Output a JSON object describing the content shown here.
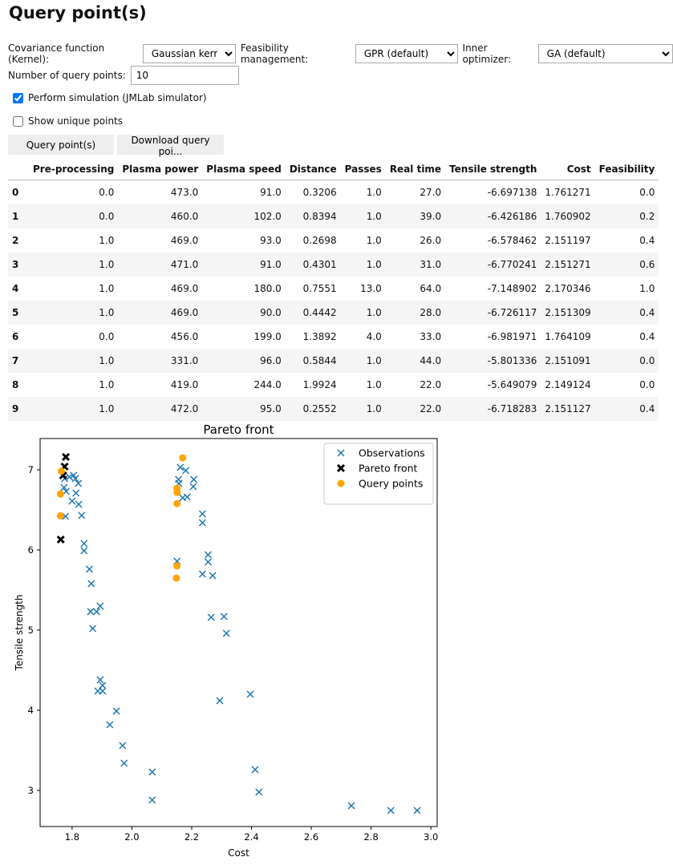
{
  "title": "Query point(s)",
  "controls": {
    "kernel_label": "Covariance function (Kernel):",
    "kernel_value": "Gaussian kernel",
    "feas_label": "Feasibility management:",
    "feas_value": "GPR (default)",
    "opt_label": "Inner optimizer:",
    "opt_value": "GA (default)",
    "nq_label": "Number of query points:",
    "nq_value": "10",
    "sim_label": "Perform simulation (JMLab simulator)",
    "sim_checked": true,
    "unique_label": "Show unique points",
    "unique_checked": false,
    "query_button": "Query point(s)",
    "download_button": "Download query poi..."
  },
  "table": {
    "headers": [
      "",
      "Pre-processing",
      "Plasma power",
      "Plasma speed",
      "Distance",
      "Passes",
      "Real time",
      "Tensile strength",
      "Cost",
      "Feasibility"
    ],
    "rows": [
      [
        "0",
        "0.0",
        "473.0",
        "91.0",
        "0.3206",
        "1.0",
        "27.0",
        "-6.697138",
        "1.761271",
        "0.0"
      ],
      [
        "1",
        "0.0",
        "460.0",
        "102.0",
        "0.8394",
        "1.0",
        "39.0",
        "-6.426186",
        "1.760902",
        "0.2"
      ],
      [
        "2",
        "1.0",
        "469.0",
        "93.0",
        "0.2698",
        "1.0",
        "26.0",
        "-6.578462",
        "2.151197",
        "0.4"
      ],
      [
        "3",
        "1.0",
        "471.0",
        "91.0",
        "0.4301",
        "1.0",
        "31.0",
        "-6.770241",
        "2.151271",
        "0.6"
      ],
      [
        "4",
        "1.0",
        "469.0",
        "180.0",
        "0.7551",
        "13.0",
        "64.0",
        "-7.148902",
        "2.170346",
        "1.0"
      ],
      [
        "5",
        "1.0",
        "469.0",
        "90.0",
        "0.4442",
        "1.0",
        "28.0",
        "-6.726117",
        "2.151309",
        "0.4"
      ],
      [
        "6",
        "0.0",
        "456.0",
        "199.0",
        "1.3892",
        "4.0",
        "33.0",
        "-6.981971",
        "1.764109",
        "0.4"
      ],
      [
        "7",
        "1.0",
        "331.0",
        "96.0",
        "0.5844",
        "1.0",
        "44.0",
        "-5.801336",
        "2.151091",
        "0.0"
      ],
      [
        "8",
        "1.0",
        "419.0",
        "244.0",
        "1.9924",
        "1.0",
        "22.0",
        "-5.649079",
        "2.149124",
        "0.0"
      ],
      [
        "9",
        "1.0",
        "472.0",
        "95.0",
        "0.2552",
        "1.0",
        "22.0",
        "-6.718283",
        "2.151127",
        "0.4"
      ]
    ]
  },
  "chart_data": {
    "type": "scatter",
    "title": "Pareto front",
    "xlabel": "Cost",
    "ylabel": "Tensile strength",
    "xlim": [
      1.693,
      3.021
    ],
    "ylim": [
      2.55,
      7.39
    ],
    "xticks": [
      "1.8",
      "2.0",
      "2.2",
      "2.4",
      "2.6",
      "2.8",
      "3.0"
    ],
    "yticks": [
      "3",
      "4",
      "5",
      "6",
      "7"
    ],
    "legend_position": "top-right",
    "grid": false,
    "series": [
      {
        "name": "Observations",
        "marker": "x",
        "color": "#1f77b4",
        "points": [
          [
            1.775,
            6.89
          ],
          [
            1.791,
            6.91
          ],
          [
            1.805,
            6.93
          ],
          [
            1.811,
            6.89
          ],
          [
            1.821,
            6.83
          ],
          [
            1.773,
            6.78
          ],
          [
            1.78,
            6.73
          ],
          [
            1.813,
            6.71
          ],
          [
            1.8,
            6.61
          ],
          [
            1.822,
            6.57
          ],
          [
            1.778,
            6.42
          ],
          [
            1.832,
            6.43
          ],
          [
            1.84,
            6.08
          ],
          [
            1.84,
            5.99
          ],
          [
            1.858,
            5.76
          ],
          [
            1.864,
            5.58
          ],
          [
            1.862,
            5.23
          ],
          [
            1.882,
            5.23
          ],
          [
            1.894,
            5.3
          ],
          [
            1.869,
            5.02
          ],
          [
            2.162,
            7.03
          ],
          [
            2.18,
            6.99
          ],
          [
            2.156,
            6.88
          ],
          [
            2.157,
            6.83
          ],
          [
            2.207,
            6.88
          ],
          [
            2.205,
            6.79
          ],
          [
            2.17,
            6.65
          ],
          [
            2.185,
            6.66
          ],
          [
            2.236,
            6.45
          ],
          [
            2.236,
            6.34
          ],
          [
            2.151,
            5.86
          ],
          [
            2.255,
            5.94
          ],
          [
            2.255,
            5.85
          ],
          [
            2.236,
            5.7
          ],
          [
            2.27,
            5.68
          ],
          [
            2.265,
            5.16
          ],
          [
            2.308,
            5.17
          ],
          [
            2.316,
            4.96
          ],
          [
            1.894,
            4.38
          ],
          [
            1.886,
            4.24
          ],
          [
            1.902,
            4.24
          ],
          [
            1.902,
            4.31
          ],
          [
            1.948,
            3.99
          ],
          [
            1.926,
            3.82
          ],
          [
            1.969,
            3.56
          ],
          [
            1.974,
            3.34
          ],
          [
            2.068,
            3.23
          ],
          [
            2.068,
            2.88
          ],
          [
            2.294,
            4.12
          ],
          [
            2.396,
            4.2
          ],
          [
            2.412,
            3.26
          ],
          [
            2.425,
            2.98
          ],
          [
            2.734,
            2.81
          ],
          [
            2.866,
            2.75
          ],
          [
            2.954,
            2.75
          ]
        ]
      },
      {
        "name": "Pareto front",
        "marker": "X",
        "color": "#000000",
        "points": [
          [
            1.779,
            7.16
          ],
          [
            1.775,
            7.04
          ],
          [
            1.77,
            6.93
          ],
          [
            1.762,
            6.13
          ]
        ]
      },
      {
        "name": "Query points",
        "marker": "o",
        "color": "#ffa500",
        "points": [
          [
            1.761,
            6.697
          ],
          [
            1.761,
            6.426
          ],
          [
            2.151,
            6.578
          ],
          [
            2.151,
            6.77
          ],
          [
            2.17,
            7.149
          ],
          [
            2.151,
            6.726
          ],
          [
            1.764,
            6.982
          ],
          [
            2.151,
            5.801
          ],
          [
            2.149,
            5.649
          ],
          [
            2.151,
            6.718
          ]
        ]
      }
    ]
  }
}
